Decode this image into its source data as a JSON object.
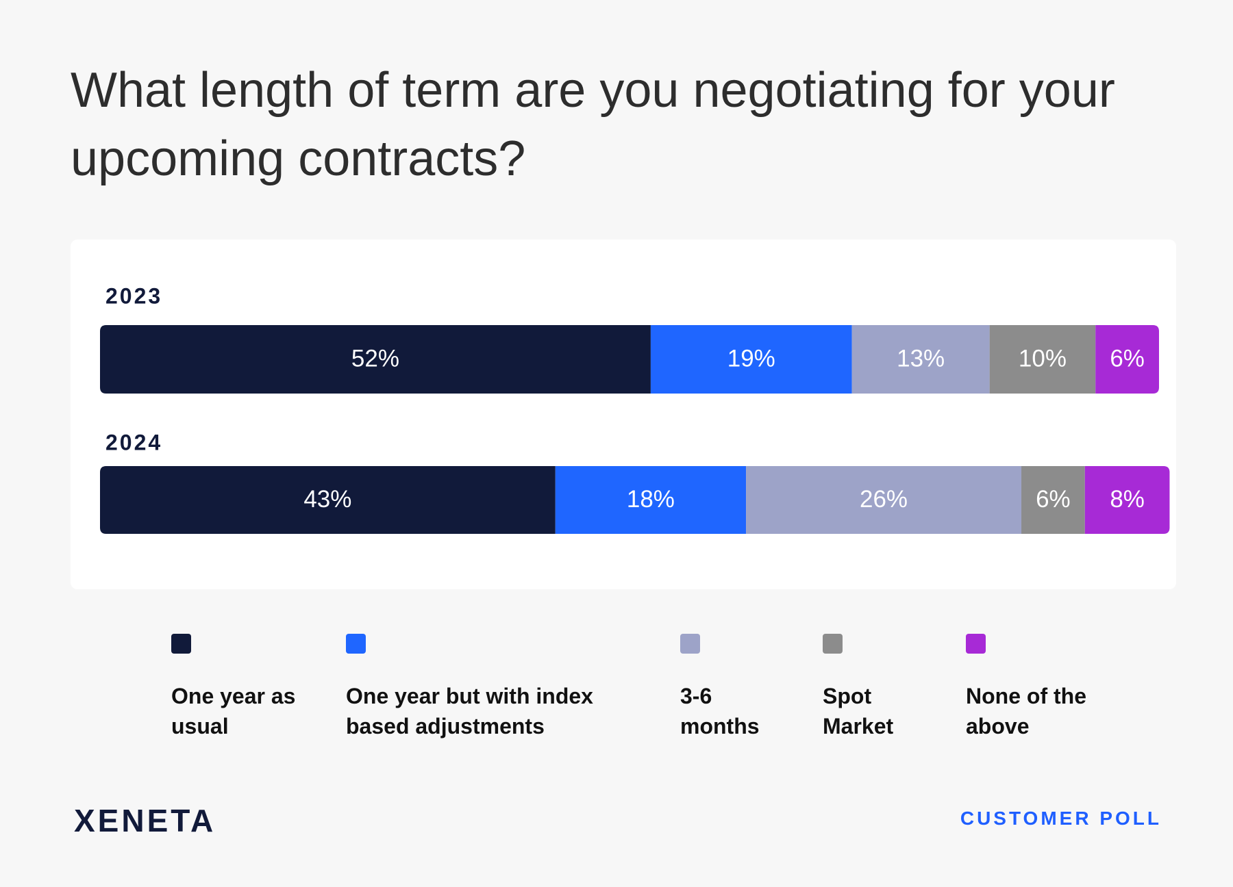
{
  "chart_data": {
    "type": "stacked-bar-horizontal",
    "title": "What length of term are you negotiating for your upcoming contracts?",
    "categories": [
      "2023",
      "2024"
    ],
    "xlim": [
      0,
      100
    ],
    "series": [
      {
        "name": "One year as usual",
        "color": "#111a3a",
        "values": [
          52,
          43
        ],
        "value_labels": [
          "52%",
          "43%"
        ]
      },
      {
        "name": "One year but with index based adjustments",
        "color": "#1f66ff",
        "values": [
          19,
          18
        ],
        "value_labels": [
          "19%",
          "18%"
        ]
      },
      {
        "name": "3-6 months",
        "color": "#9da3c8",
        "values": [
          13,
          26
        ],
        "value_labels": [
          "13%",
          "26%"
        ]
      },
      {
        "name": "Spot Market",
        "color": "#8c8c8c",
        "values": [
          10,
          6
        ],
        "value_labels": [
          "10%",
          "6%"
        ]
      },
      {
        "name": "None of the above",
        "color": "#a72ad6",
        "values": [
          6,
          8
        ],
        "value_labels": [
          "6%",
          "8%"
        ]
      }
    ]
  },
  "footer": {
    "brand": "XENETA",
    "label": "CUSTOMER POLL"
  }
}
